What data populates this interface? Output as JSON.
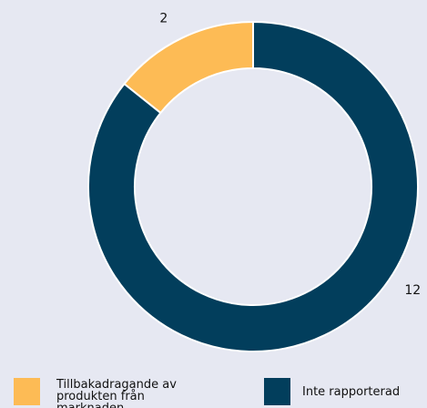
{
  "chart_data": {
    "type": "donut",
    "series": [
      {
        "name": "Tillbakadragande av produkten från marknaden",
        "color": "#fdbb55",
        "value": 2
      },
      {
        "name": "Inte rapporterad",
        "color": "#023e5c",
        "value": 12
      }
    ],
    "legend": "bottom"
  }
}
